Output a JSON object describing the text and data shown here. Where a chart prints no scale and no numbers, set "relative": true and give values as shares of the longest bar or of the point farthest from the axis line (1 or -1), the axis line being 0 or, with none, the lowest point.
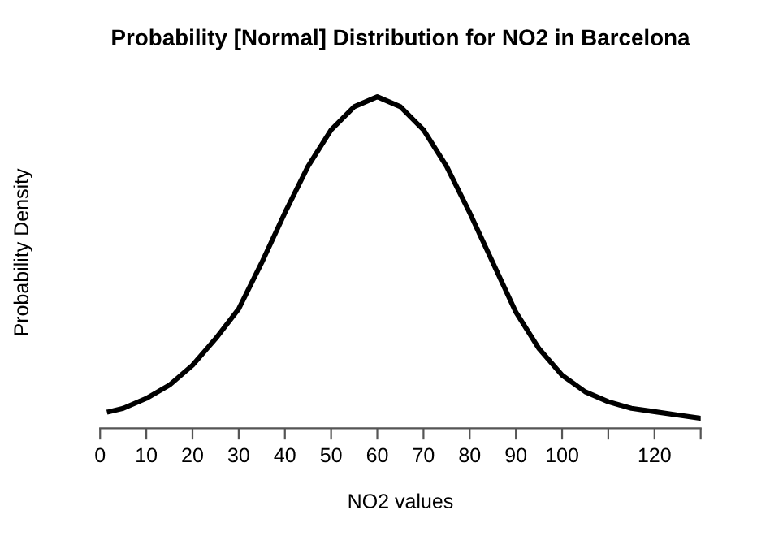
{
  "chart_data": {
    "type": "line",
    "title": "Probability [Normal] Distribution for NO2 in Barcelona",
    "xlabel": "NO2 values",
    "ylabel": "Probability Density",
    "relative": true,
    "x": [
      2,
      5,
      10,
      15,
      20,
      25,
      30,
      35,
      40,
      45,
      50,
      55,
      60,
      65,
      70,
      75,
      80,
      85,
      90,
      95,
      100,
      105,
      110,
      115,
      120,
      125,
      130
    ],
    "series": [
      {
        "color": "#000000",
        "values": [
          0.05,
          0.06,
          0.09,
          0.13,
          0.19,
          0.27,
          0.36,
          0.5,
          0.65,
          0.79,
          0.9,
          0.97,
          1.0,
          0.97,
          0.9,
          0.79,
          0.65,
          0.5,
          0.35,
          0.24,
          0.16,
          0.11,
          0.08,
          0.06,
          0.05,
          0.04,
          0.03
        ]
      }
    ],
    "xlim": [
      0,
      130
    ],
    "xticks": [
      0,
      10,
      20,
      30,
      40,
      50,
      60,
      70,
      80,
      90,
      100,
      {
        "value": 110,
        "label": null
      },
      120,
      {
        "value": 130,
        "label": null
      }
    ],
    "line_style": "solid",
    "marker": "none",
    "grid": false,
    "legend": false
  }
}
